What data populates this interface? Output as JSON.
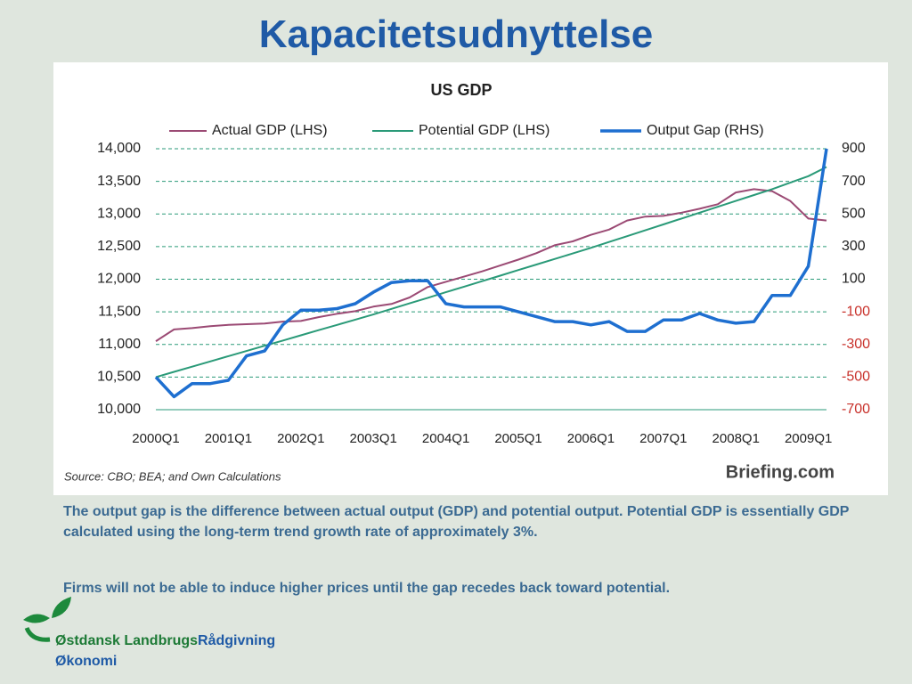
{
  "title": "Kapacitetsudnyttelse",
  "paragraphs": [
    "The output gap is the difference between actual output (GDP) and potential output. Potential GDP is essentially GDP calculated using the long-term trend growth rate of approximately 3%.",
    "Firms will not be able to induce higher prices until the gap recedes back toward potential."
  ],
  "logo": {
    "name_part1": "Østdansk Landbrugs",
    "name_part2": "Rådgivning",
    "line2": "Økonomi"
  },
  "chart_data": {
    "type": "line",
    "title": "US GDP",
    "source": "Source: CBO; BEA; and Own Calculations",
    "credit": "Briefing.com",
    "categories": [
      "2000Q1",
      null,
      null,
      null,
      "2001Q1",
      null,
      null,
      null,
      "2002Q1",
      null,
      null,
      null,
      "2003Q1",
      null,
      null,
      null,
      "2004Q1",
      null,
      null,
      null,
      "2005Q1",
      null,
      null,
      null,
      "2006Q1",
      null,
      null,
      null,
      "2007Q1",
      null,
      null,
      null,
      "2008Q1",
      null,
      null,
      null,
      "2009Q1",
      null
    ],
    "series": [
      {
        "name": "Actual GDP (LHS)",
        "color": "#9b4a74",
        "values": [
          11050,
          11230,
          11250,
          11280,
          11300,
          11310,
          11320,
          11350,
          11360,
          11420,
          11470,
          11510,
          11580,
          11620,
          11720,
          11880,
          11960,
          12040,
          12120,
          12210,
          12300,
          12400,
          12520,
          12580,
          12680,
          12760,
          12900,
          12960,
          12970,
          13020,
          13080,
          13150,
          13330,
          13380,
          13350,
          13200,
          12930,
          12900
        ]
      },
      {
        "name": "Potential GDP (LHS)",
        "color": "#2a9a78",
        "values": [
          10500,
          10580,
          10660,
          10740,
          10820,
          10900,
          10980,
          11060,
          11140,
          11220,
          11300,
          11380,
          11460,
          11545,
          11630,
          11715,
          11800,
          11885,
          11970,
          12055,
          12140,
          12225,
          12310,
          12395,
          12480,
          12570,
          12660,
          12750,
          12840,
          12930,
          13020,
          13110,
          13200,
          13290,
          13380,
          13480,
          13580,
          13720
        ]
      },
      {
        "name": "Output Gap (RHS)",
        "color": "#1e6fd0",
        "axis": "y2",
        "values": [
          -500,
          -620,
          -540,
          -540,
          -520,
          -370,
          -340,
          -180,
          -90,
          -90,
          -80,
          -50,
          20,
          80,
          90,
          90,
          -50,
          -70,
          -70,
          -70,
          -100,
          -130,
          -160,
          -160,
          -180,
          -160,
          -220,
          -220,
          -150,
          -150,
          -110,
          -150,
          -170,
          -160,
          0,
          0,
          180,
          900
        ]
      }
    ],
    "ylim": [
      10000,
      14000
    ],
    "yticks": [
      {
        "value": 10000,
        "label": "10,000"
      },
      {
        "value": 10500,
        "label": "10,500"
      },
      {
        "value": 11000,
        "label": "11,000"
      },
      {
        "value": 11500,
        "label": "11,500"
      },
      {
        "value": 12000,
        "label": "12,000"
      },
      {
        "value": 12500,
        "label": "12,500"
      },
      {
        "value": 13000,
        "label": "13,000"
      },
      {
        "value": 13500,
        "label": "13,500"
      },
      {
        "value": 14000,
        "label": "14,000"
      }
    ],
    "y2lim": [
      -700,
      900
    ],
    "y2ticks": [
      -700,
      -500,
      -300,
      -100,
      100,
      300,
      500,
      700,
      900
    ],
    "y2tick_negative_color": "#c8302a",
    "grid": true
  }
}
